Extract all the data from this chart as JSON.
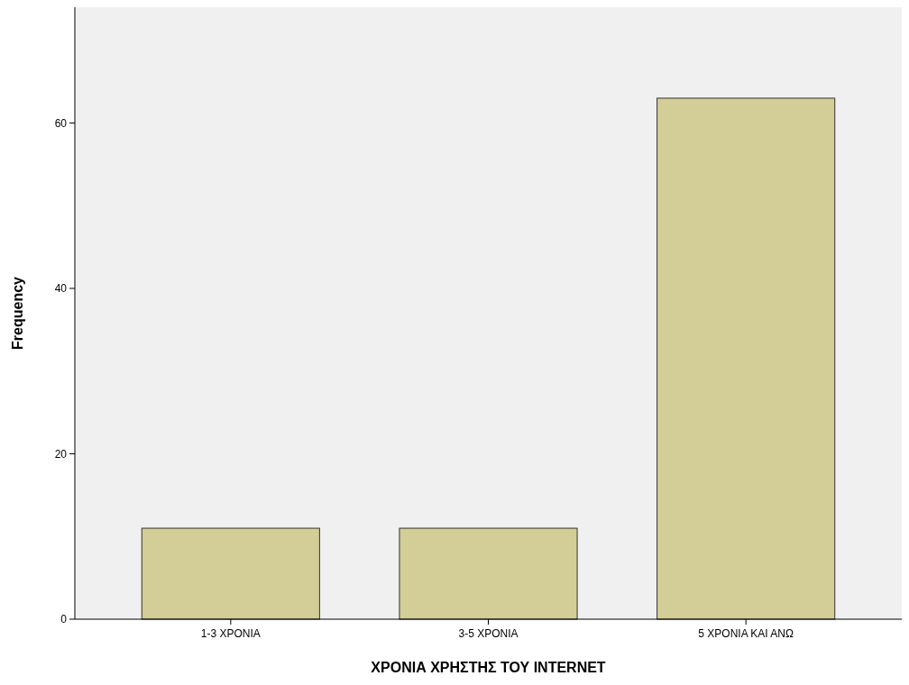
{
  "chart_data": {
    "type": "bar",
    "xlabel": "ΧΡΟΝΙΑ ΧΡΗΣΤΗΣ ΤΟΥ INTERNET",
    "ylabel": "Frequency",
    "categories": [
      "1-3 ΧΡΟΝΙΑ",
      "3-5 ΧΡΟΝΙΑ",
      "5 ΧΡΟΝΙΑ ΚΑΙ ΑΝΩ"
    ],
    "values": [
      11,
      11,
      63
    ],
    "color": "#d3ce97",
    "ylim": [
      0,
      74
    ],
    "yticks": [
      0,
      20,
      40,
      60
    ],
    "grid": false
  }
}
